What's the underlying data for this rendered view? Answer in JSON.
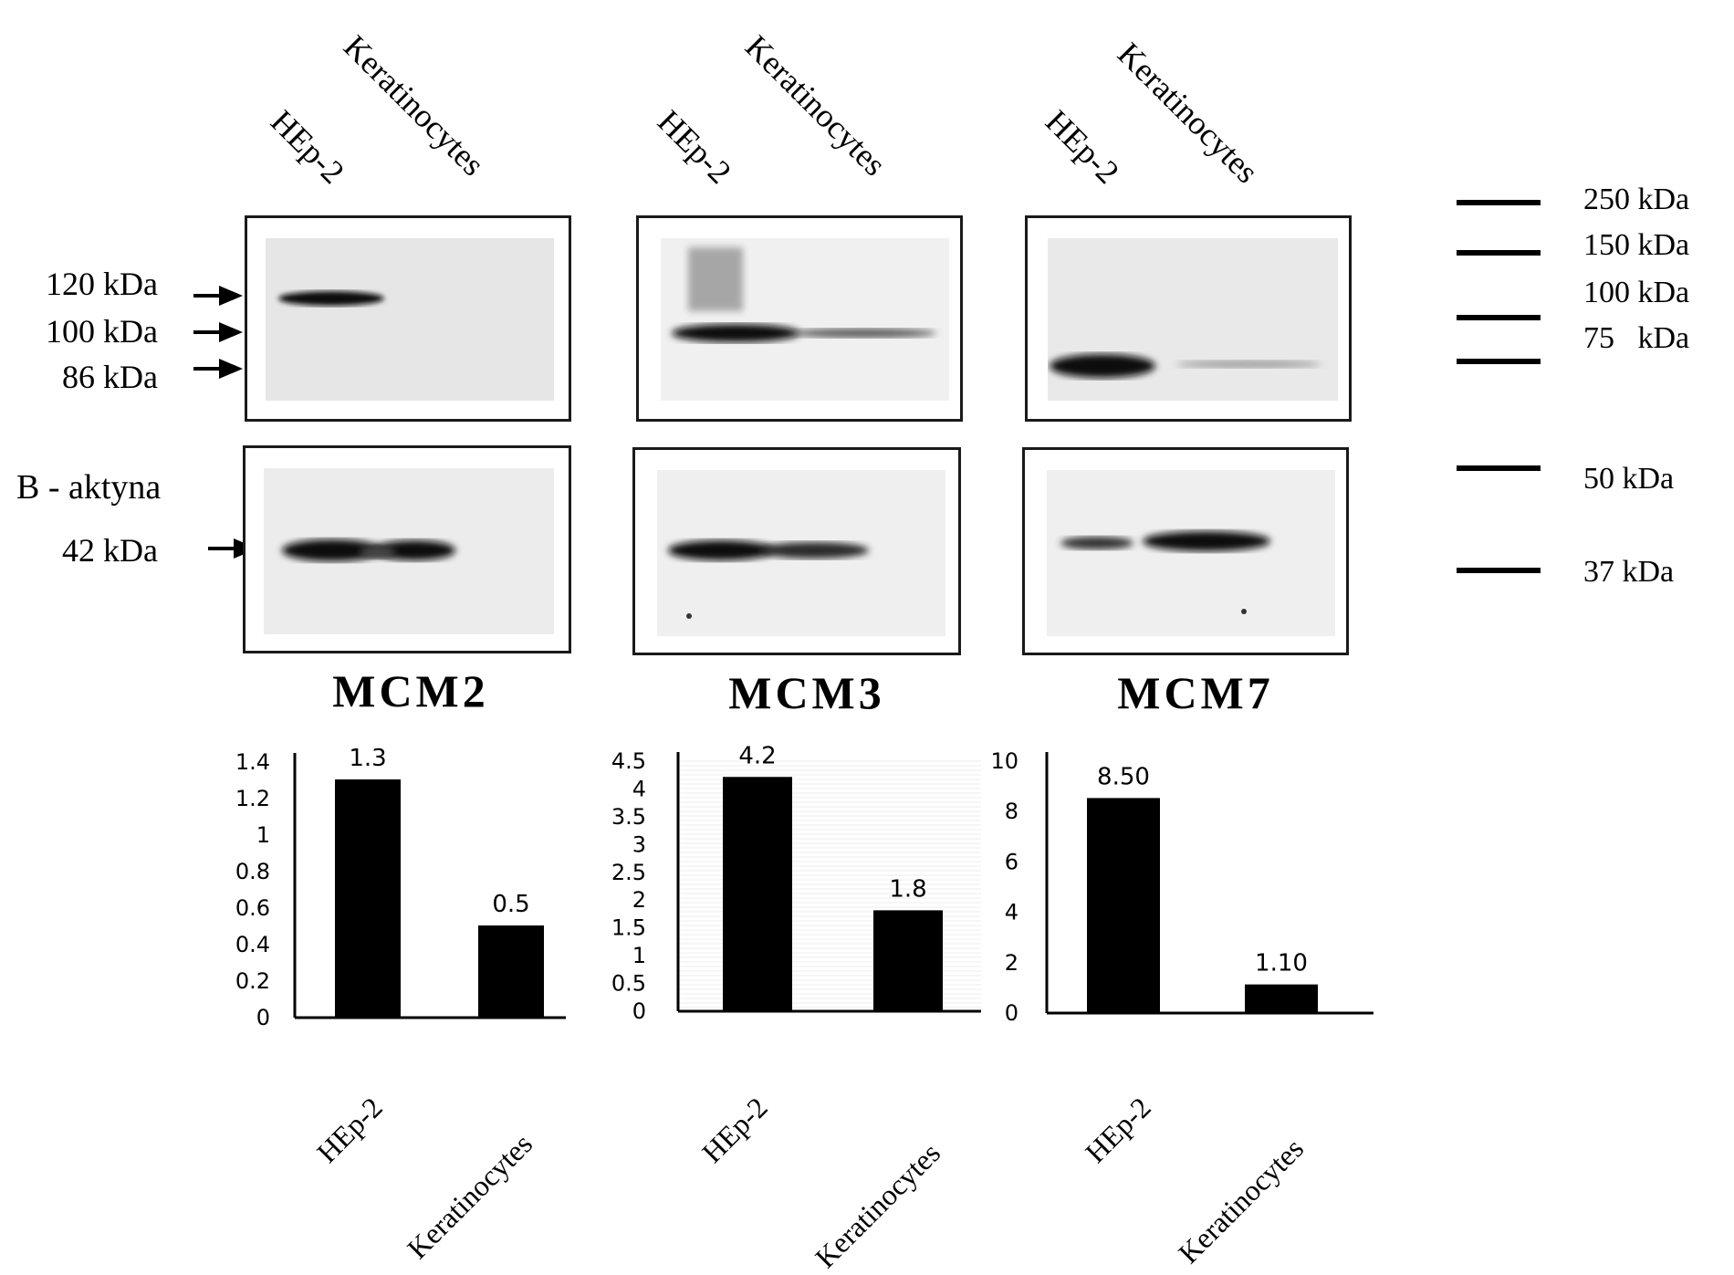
{
  "lanes": [
    "HEp-2",
    "Keratinocytes"
  ],
  "markers": {
    "mcm2": [
      "120 kDa",
      "100 kDa",
      "86  kDa"
    ],
    "actin_name": "B - aktyna",
    "actin_kda": "42 kDa"
  },
  "proteins": [
    "MCM2",
    "MCM3",
    "MCM7"
  ],
  "ladder": [
    "250 kDa",
    "150 kDa",
    "100 kDa",
    "75   kDa",
    "50 kDa",
    "37 kDa"
  ],
  "chart_data": [
    {
      "type": "bar",
      "categories": [
        "HEp-2",
        "Keratinocytes"
      ],
      "values": [
        1.3,
        0.5
      ],
      "value_labels": [
        "1.3",
        "0.5"
      ],
      "ylim": [
        0,
        1.4
      ],
      "yticks": [
        0,
        0.2,
        0.4,
        0.6,
        0.8,
        1,
        1.2,
        1.4
      ],
      "ytick_labels": [
        "0",
        "0.2",
        "0.4",
        "0.6",
        "0.8",
        "1",
        "1.2",
        "1.4"
      ],
      "grid": false,
      "color": "#000000"
    },
    {
      "type": "bar",
      "categories": [
        "HEp-2",
        "Keratinocytes"
      ],
      "values": [
        4.2,
        1.8
      ],
      "value_labels": [
        "4.2",
        "1.8"
      ],
      "ylim": [
        0,
        4.5
      ],
      "yticks": [
        0,
        0.5,
        1,
        1.5,
        2,
        2.5,
        3,
        3.5,
        4,
        4.5
      ],
      "ytick_labels": [
        "0",
        "0.5",
        "1",
        "1.5",
        "2",
        "2.5",
        "3",
        "3.5",
        "4",
        "4.5"
      ],
      "grid": true,
      "color": "#000000"
    },
    {
      "type": "bar",
      "categories": [
        "HEp-2",
        "Keratinocytes"
      ],
      "values": [
        8.5,
        1.1
      ],
      "value_labels": [
        "8.50",
        "1.10"
      ],
      "ylim": [
        0,
        10
      ],
      "yticks": [
        0,
        2,
        4,
        6,
        8,
        10
      ],
      "ytick_labels": [
        "0",
        "2",
        "4",
        "6",
        "8",
        "10"
      ],
      "grid": false,
      "color": "#000000"
    }
  ]
}
